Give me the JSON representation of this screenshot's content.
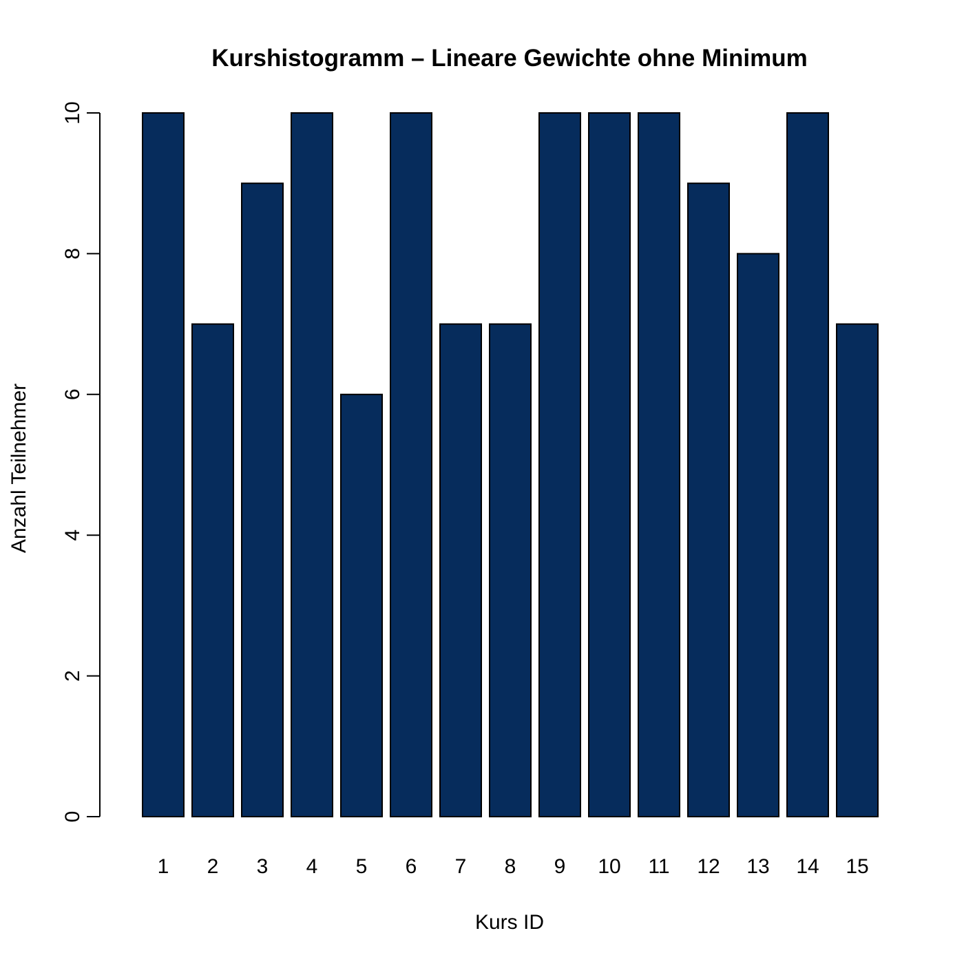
{
  "chart_data": {
    "type": "bar",
    "title": "Kurshistogramm – Lineare Gewichte ohne Minimum",
    "xlabel": "Kurs ID",
    "ylabel": "Anzahl Teilnehmer",
    "categories": [
      "1",
      "2",
      "3",
      "4",
      "5",
      "6",
      "7",
      "8",
      "9",
      "10",
      "11",
      "12",
      "13",
      "14",
      "15"
    ],
    "values": [
      10,
      7,
      9,
      10,
      6,
      10,
      7,
      7,
      10,
      10,
      10,
      9,
      8,
      10,
      7
    ],
    "ylim": [
      0,
      10
    ],
    "yticks": [
      0,
      2,
      4,
      6,
      8,
      10
    ],
    "ytick_labels": [
      "0",
      "2",
      "4",
      "6",
      "8",
      "10"
    ],
    "bar_color": "#062c5c",
    "grid": false,
    "legend": false
  }
}
